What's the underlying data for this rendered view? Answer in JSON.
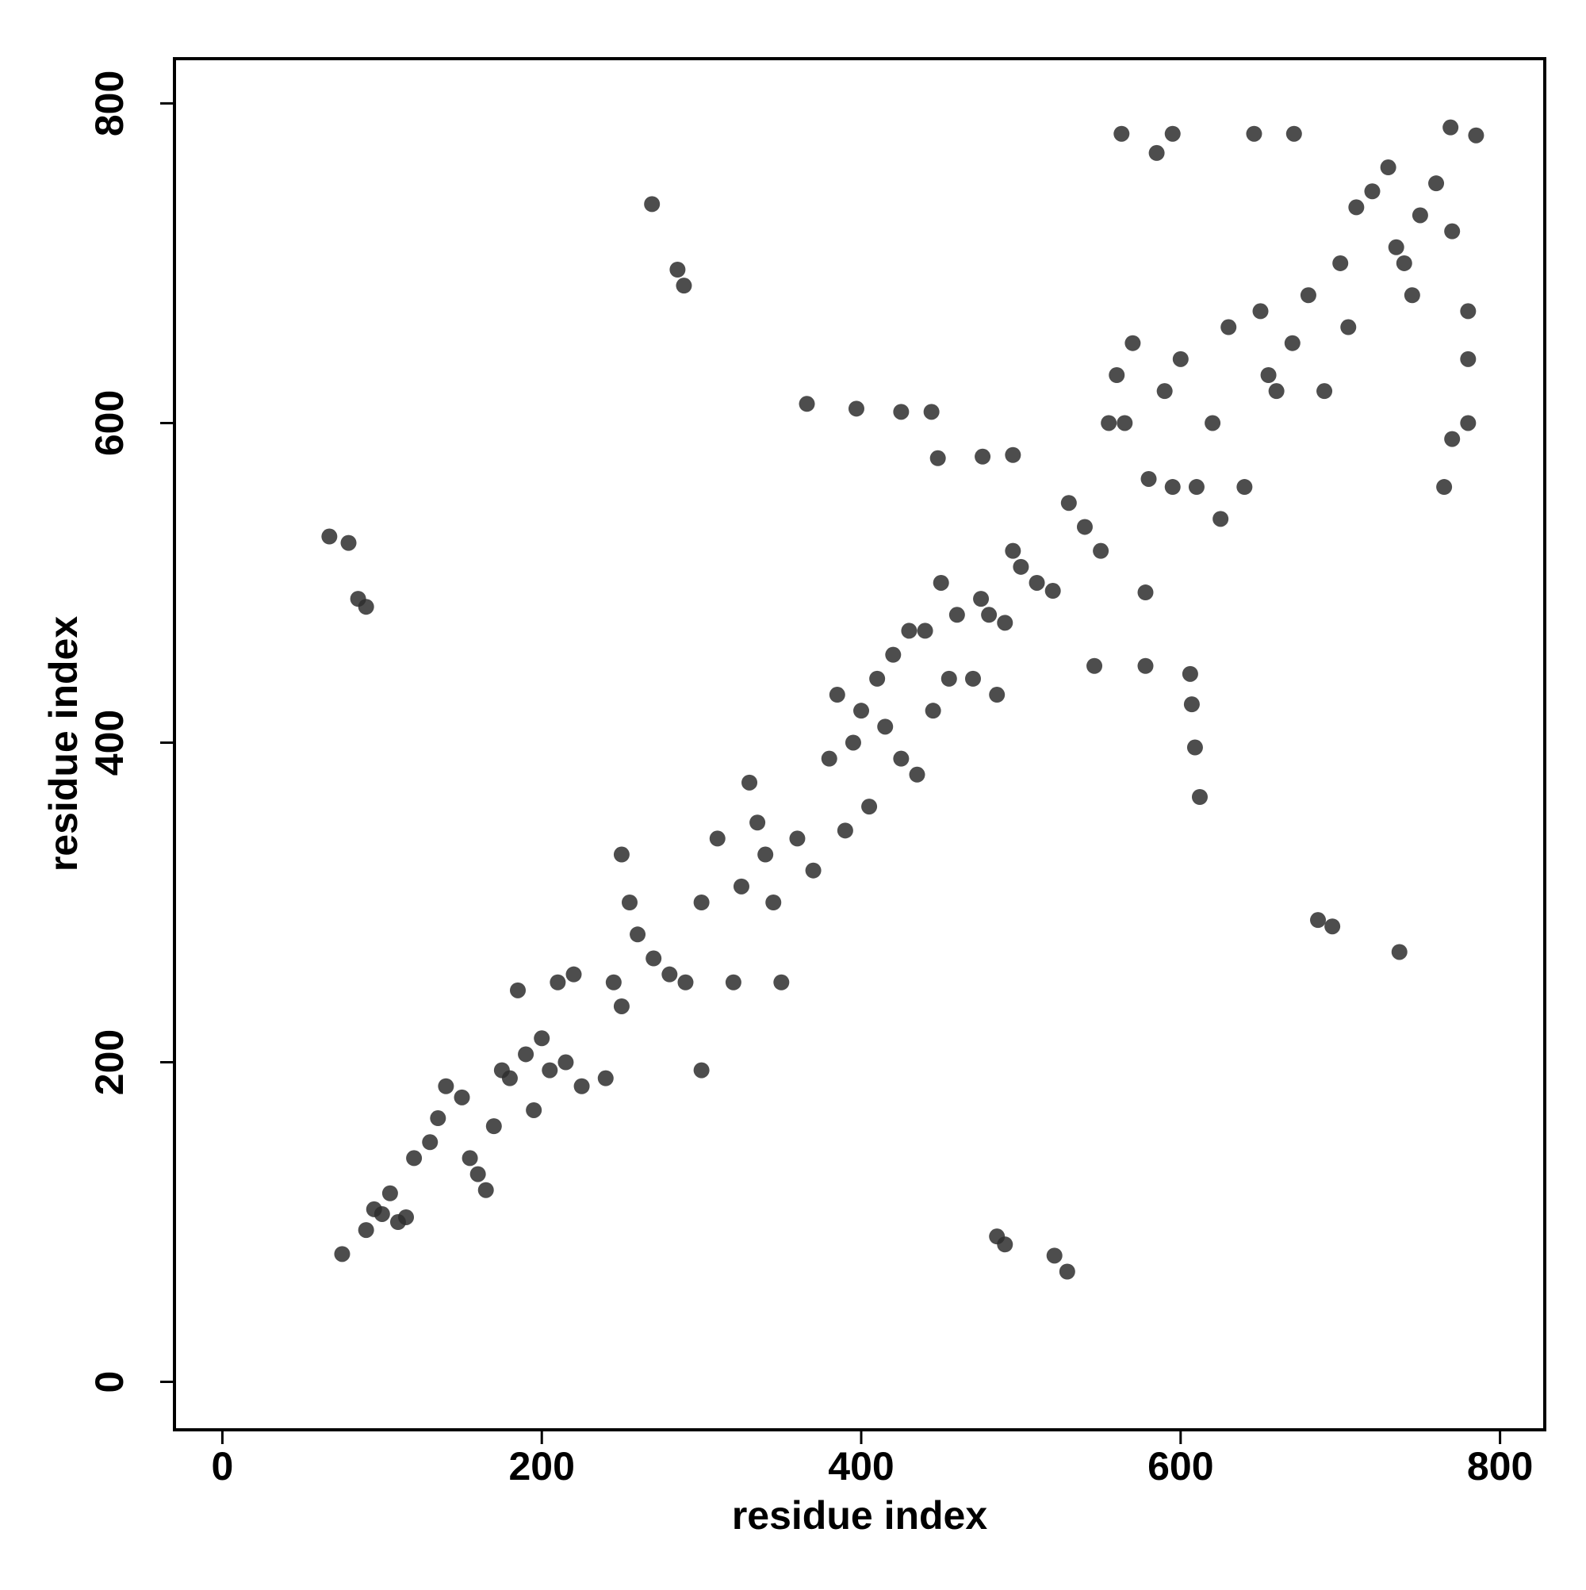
{
  "chart_data": {
    "type": "scatter",
    "xlabel": "residue index",
    "ylabel": "residue index",
    "x": [
      67,
      79,
      85,
      90,
      269,
      285,
      289,
      366,
      397,
      425,
      444,
      448,
      476,
      495,
      563,
      585,
      595,
      646,
      671,
      769,
      785,
      546,
      578,
      578,
      606,
      607,
      609,
      612,
      686,
      695,
      737,
      485,
      490,
      521,
      529,
      75,
      90,
      95,
      100,
      110,
      115,
      105,
      120,
      130,
      135,
      140,
      150,
      155,
      160,
      165,
      170,
      175,
      180,
      185,
      190,
      195,
      200,
      205,
      210,
      215,
      220,
      225,
      240,
      245,
      250,
      250,
      255,
      260,
      270,
      280,
      290,
      300,
      300,
      310,
      320,
      325,
      330,
      335,
      340,
      345,
      350,
      360,
      370,
      380,
      385,
      390,
      395,
      400,
      405,
      410,
      415,
      420,
      425,
      430,
      435,
      440,
      445,
      450,
      455,
      460,
      470,
      475,
      480,
      485,
      490,
      495,
      500,
      510,
      520,
      530,
      540,
      550,
      555,
      560,
      565,
      570,
      580,
      590,
      595,
      600,
      610,
      620,
      625,
      630,
      640,
      650,
      655,
      660,
      670,
      680,
      690,
      700,
      705,
      710,
      720,
      730,
      735,
      740,
      745,
      750,
      760,
      770,
      780,
      780,
      780,
      770,
      765
    ],
    "values": [
      529,
      525,
      490,
      485,
      737,
      696,
      686,
      612,
      609,
      607,
      607,
      578,
      579,
      580,
      781,
      769,
      781,
      781,
      781,
      785,
      780,
      448,
      494,
      448,
      443,
      424,
      397,
      366,
      289,
      285,
      269,
      91,
      86,
      79,
      69,
      80,
      95,
      108,
      105,
      100,
      103,
      118,
      140,
      150,
      165,
      185,
      178,
      140,
      130,
      120,
      160,
      195,
      190,
      245,
      205,
      170,
      215,
      195,
      250,
      200,
      255,
      185,
      190,
      250,
      235,
      330,
      300,
      280,
      265,
      255,
      250,
      300,
      195,
      340,
      250,
      310,
      375,
      350,
      330,
      300,
      250,
      340,
      320,
      390,
      430,
      345,
      400,
      420,
      360,
      440,
      410,
      455,
      390,
      470,
      380,
      470,
      420,
      500,
      440,
      480,
      440,
      490,
      480,
      430,
      475,
      520,
      510,
      500,
      495,
      550,
      535,
      520,
      600,
      630,
      600,
      650,
      565,
      620,
      560,
      640,
      560,
      600,
      540,
      660,
      560,
      670,
      630,
      620,
      650,
      680,
      620,
      700,
      660,
      735,
      745,
      760,
      710,
      700,
      680,
      730,
      750,
      720,
      640,
      670,
      600,
      590,
      560
    ],
    "color": "#2e2e2e",
    "xlim": [
      -30,
      828
    ],
    "ylim": [
      -30,
      828
    ],
    "xticks": [
      0,
      200,
      400,
      600,
      800
    ],
    "yticks": [
      0,
      200,
      400,
      600,
      800
    ]
  }
}
